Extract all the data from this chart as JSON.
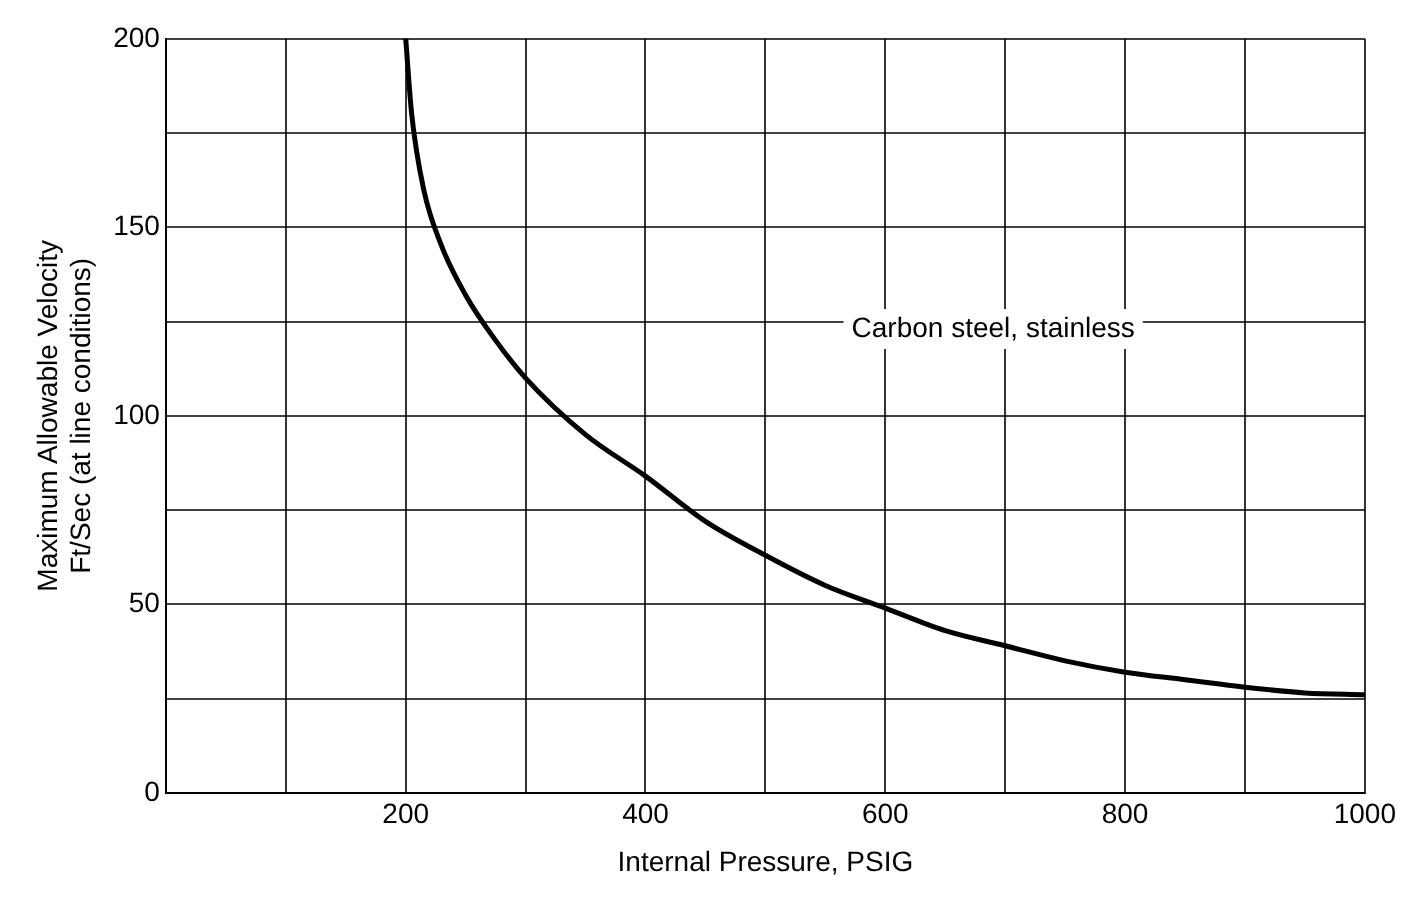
{
  "chart_data": {
    "type": "line",
    "xlabel": "Internal Pressure, PSIG",
    "ylabel": "Maximum Allowable Velocity\nFt/Sec (at line conditions)",
    "xlim": [
      0,
      1000
    ],
    "xticks": [
      {
        "value": 0,
        "label": null
      },
      {
        "value": 100,
        "label": null
      },
      200,
      {
        "value": 300,
        "label": null
      },
      400,
      {
        "value": 500,
        "label": null
      },
      600,
      {
        "value": 700,
        "label": null
      },
      800,
      {
        "value": 900,
        "label": null
      },
      1000
    ],
    "ylim": [
      0,
      200
    ],
    "yticks": [
      0,
      {
        "value": 25,
        "label": null
      },
      50,
      {
        "value": 75,
        "label": null
      },
      100,
      {
        "value": 125,
        "label": null
      },
      150,
      {
        "value": 175,
        "label": null
      },
      200
    ],
    "grid": true,
    "legend": false,
    "marker": "none",
    "line_style": "solid",
    "annotations": [
      "Carbon steel, stainless"
    ],
    "series": [
      {
        "color": "#000000",
        "x": [
          200,
          205,
          215,
          230,
          250,
          275,
          300,
          350,
          400,
          450,
          500,
          550,
          600,
          650,
          700,
          750,
          800,
          850,
          900,
          950,
          1000
        ],
        "values": [
          200,
          180,
          160,
          145,
          132,
          120,
          110,
          95,
          84,
          72,
          63,
          55,
          49,
          43,
          39,
          35,
          32,
          30,
          28,
          26.5,
          26
        ]
      }
    ]
  }
}
